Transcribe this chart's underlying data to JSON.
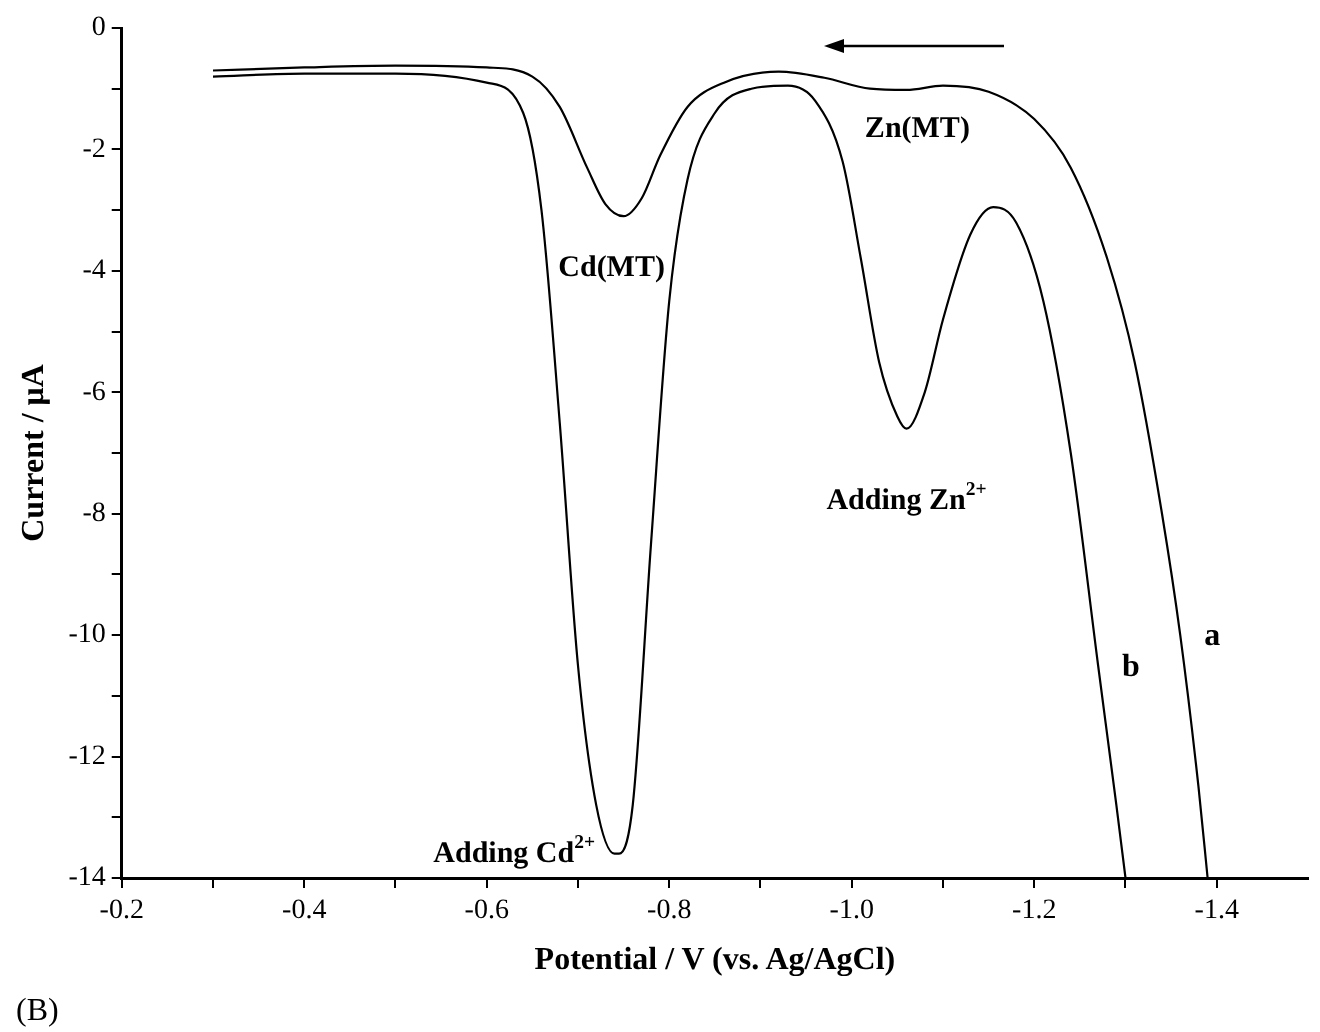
{
  "chart_data": {
    "type": "line",
    "xlabel": "Potential / V (vs. Ag/AgCl)",
    "ylabel": "Current / μA",
    "xlim": [
      -0.2,
      -1.5
    ],
    "xticks": [
      -0.2,
      {
        "value": -0.3,
        "label": null
      },
      -0.4,
      {
        "value": -0.5,
        "label": null
      },
      -0.6,
      {
        "value": -0.7,
        "label": null
      },
      -0.8,
      {
        "value": -0.9,
        "label": null
      },
      {
        "value": -1.0,
        "label": "-1.0"
      },
      {
        "value": -1.1,
        "label": null
      },
      -1.2,
      {
        "value": -1.3,
        "label": null
      },
      -1.4
    ],
    "ylim": [
      -14,
      0
    ],
    "yticks": [
      0,
      {
        "value": -1,
        "label": null
      },
      -2,
      {
        "value": -3,
        "label": null
      },
      -4,
      {
        "value": -5,
        "label": null
      },
      -6,
      {
        "value": -7,
        "label": null
      },
      -8,
      {
        "value": -9,
        "label": null
      },
      -10,
      {
        "value": -11,
        "label": null
      },
      -12,
      {
        "value": -13,
        "label": null
      },
      -14
    ],
    "grid": false,
    "legend": false,
    "marker": "none",
    "line_style": "solid",
    "series": [
      {
        "name": "a",
        "color": "#000000",
        "x": [
          -0.3,
          -0.4,
          -0.5,
          -0.6,
          -0.65,
          -0.68,
          -0.71,
          -0.73,
          -0.75,
          -0.77,
          -0.79,
          -0.82,
          -0.86,
          -0.92,
          -0.97,
          -1.02,
          -1.06,
          -1.1,
          -1.15,
          -1.2,
          -1.24,
          -1.28,
          -1.31,
          -1.34,
          -1.36,
          -1.38,
          -1.39
        ],
        "values": [
          -0.7,
          -0.65,
          -0.62,
          -0.65,
          -0.8,
          -1.3,
          -2.3,
          -2.9,
          -3.1,
          -2.8,
          -2.1,
          -1.3,
          -0.9,
          -0.72,
          -0.82,
          -1.0,
          -1.02,
          -0.95,
          -1.05,
          -1.5,
          -2.3,
          -3.8,
          -5.5,
          -8,
          -10,
          -12.5,
          -14
        ]
      },
      {
        "name": "b",
        "color": "#000000",
        "x": [
          -0.3,
          -0.4,
          -0.5,
          -0.6,
          -0.64,
          -0.66,
          -0.68,
          -0.7,
          -0.72,
          -0.74,
          -0.745,
          -0.76,
          -0.78,
          -0.8,
          -0.82,
          -0.85,
          -0.89,
          -0.93,
          -0.96,
          -0.99,
          -1.01,
          -1.03,
          -1.05,
          -1.06,
          -1.08,
          -1.1,
          -1.13,
          -1.155,
          -1.18,
          -1.21,
          -1.24,
          -1.27,
          -1.29,
          -1.3
        ],
        "values": [
          -0.8,
          -0.75,
          -0.75,
          -0.9,
          -1.4,
          -3,
          -6.5,
          -10.5,
          -12.8,
          -13.6,
          -13.6,
          -12.8,
          -8.5,
          -4.5,
          -2.5,
          -1.4,
          -1.0,
          -0.95,
          -1.2,
          -2.2,
          -3.8,
          -5.5,
          -6.4,
          -6.6,
          -6.0,
          -4.8,
          -3.4,
          -2.95,
          -3.2,
          -4.5,
          -7,
          -10.5,
          -12.8,
          -14
        ]
      }
    ],
    "annotations": [
      {
        "text": "Cd(MT)",
        "x": -0.75,
        "y": -3.1
      },
      {
        "text": "Zn(MT)",
        "x": -1.05,
        "y": -1.0
      },
      {
        "text": "Adding Zn$^{2+}$",
        "x": -1.06,
        "y": -6.6
      },
      {
        "text": "Adding Cd$^{2+}$",
        "x": -0.745,
        "y": -13.6
      },
      "(B)"
    ]
  }
}
